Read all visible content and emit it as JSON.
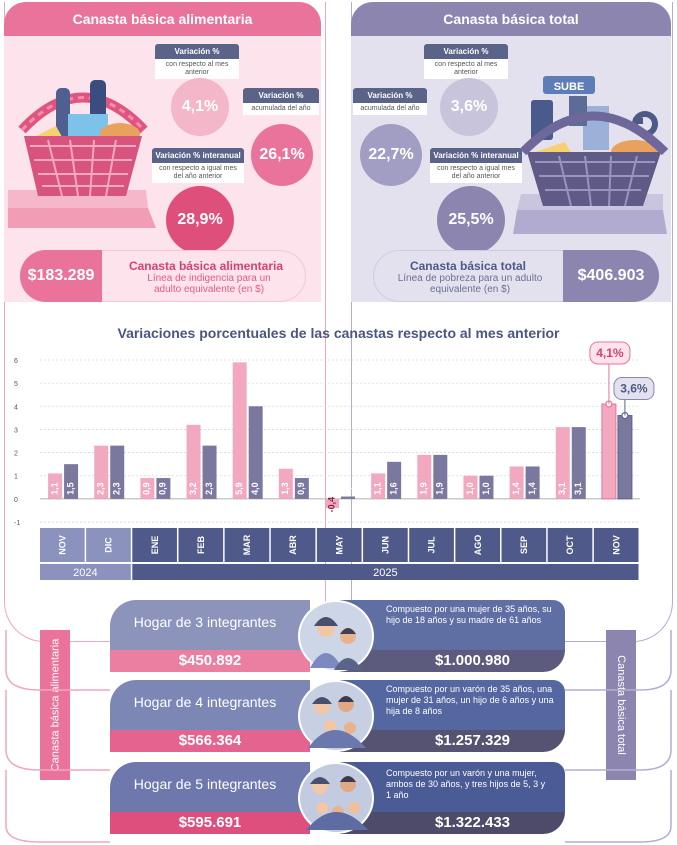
{
  "canasta_alimentaria": {
    "title": "Canasta básica alimentaria",
    "variation_month": {
      "label": "Variación %",
      "sub": "con respecto al mes anterior",
      "value": "4,1%"
    },
    "variation_year": {
      "label": "Variación %",
      "sub": "acumulada del año",
      "value": "26,1%"
    },
    "variation_interanual": {
      "label": "Variación % interanual",
      "sub": "con respecto a igual mes del año anterior",
      "value": "28,9%"
    },
    "amount": "$183.289",
    "amount_title": "Canasta básica alimentaria",
    "amount_desc": "Línea de indigencia para un adulto equivalente (en $)"
  },
  "canasta_total": {
    "title": "Canasta básica total",
    "variation_month": {
      "label": "Variación %",
      "sub": "con respecto al mes anterior",
      "value": "3,6%"
    },
    "variation_year": {
      "label": "Variación %",
      "sub": "acumulada del año",
      "value": "22,7%"
    },
    "variation_interanual": {
      "label": "Variación % interanual",
      "sub": "con respecto a igual mes del año anterior",
      "value": "25,5%"
    },
    "amount": "$406.903",
    "amount_title": "Canasta básica total",
    "amount_desc": "Línea de pobreza para un adulto equivalente (en $)",
    "sube_label": "SUBE"
  },
  "chart_data": {
    "type": "bar",
    "title": "Variaciones porcentuales de las canastas respecto al mes anterior",
    "categories": [
      "NOV",
      "DIC",
      "ENE",
      "FEB",
      "MAR",
      "ABR",
      "MAY",
      "JUN",
      "JUL",
      "AGO",
      "SEP",
      "OCT",
      "NOV"
    ],
    "year_labels": [
      {
        "label": "2024",
        "span": 2
      },
      {
        "label": "2025",
        "span": 11
      }
    ],
    "series": [
      {
        "values": [
          1.1,
          2.3,
          0.9,
          3.2,
          5.9,
          1.3,
          -0.4,
          1.1,
          1.9,
          1.0,
          1.4,
          3.1,
          4.1
        ],
        "labels": [
          "1,1",
          "2,3",
          "0,9",
          "3,2",
          "5,9",
          "1,3",
          "-0,4",
          "1,1",
          "1,9",
          "1,0",
          "1,4",
          "3,1",
          "4,1%"
        ],
        "color": "#f2a9c0"
      },
      {
        "values": [
          1.5,
          2.3,
          0.9,
          2.3,
          4.0,
          0.9,
          0.1,
          1.6,
          1.9,
          1.0,
          1.4,
          3.1,
          3.6
        ],
        "labels": [
          "1,5",
          "2,3",
          "0,9",
          "2,3",
          "4,0",
          "0,9",
          "0,1",
          "1,6",
          "1,9",
          "1,0",
          "1,4",
          "3,1",
          "3,6%"
        ],
        "color": "#7b789f"
      }
    ],
    "ylim": [
      -1,
      6
    ],
    "yticks": [
      "-1",
      "0",
      "1",
      "2",
      "3",
      "4",
      "5",
      "6"
    ],
    "grid": true
  },
  "households": [
    {
      "title": "Hogar de 3 integrantes",
      "cba": "$450.892",
      "cbt": "$1.000.980",
      "desc": "Compuesto por una mujer de 35 años, su hijo de 18 años y su madre de 61 años"
    },
    {
      "title": "Hogar de 4 integrantes",
      "cba": "$566.364",
      "cbt": "$1.257.329",
      "desc": "Compuesto por un varón de 35 años, una mujer de 31 años, un hijo de 6 años y una hija de 8 años"
    },
    {
      "title": "Hogar de 5 integrantes",
      "cba": "$595.691",
      "cbt": "$1.322.433",
      "desc": "Compuesto por un varón y una mujer, ambos de 30 años, y tres hijos de 5, 3 y 1 año"
    }
  ],
  "side_labels": {
    "left": "Canasta básica alimentaria",
    "right": "Canasta básica total"
  },
  "colors": {
    "pink": "#e9739a",
    "pink_light": "#f2a9c0",
    "violet": "#8b85b0",
    "navy": "#5a6488",
    "steel": "#7f88b2"
  }
}
